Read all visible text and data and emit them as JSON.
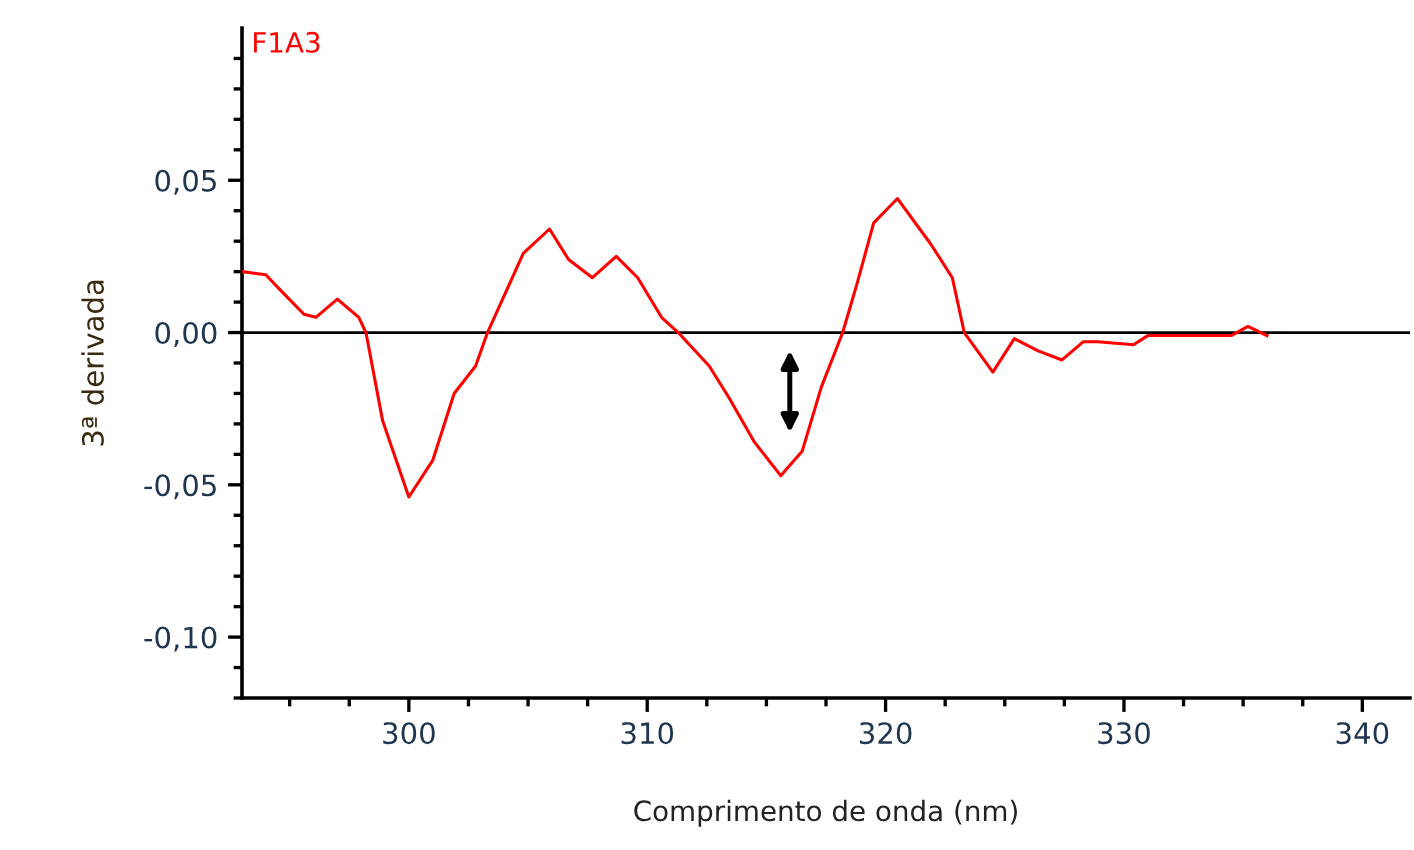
{
  "chart_data": {
    "type": "line",
    "xlabel": "Comprimento de onda (nm)",
    "ylabel": "3ª derivada",
    "series": [
      {
        "name": "F1A3",
        "color": "#ff0000",
        "x": [
          293.0,
          294.0,
          294.6,
          295.6,
          296.1,
          297.0,
          297.9,
          298.2,
          298.9,
          300.0,
          301.0,
          301.9,
          302.8,
          303.3,
          304.8,
          305.9,
          306.7,
          307.7,
          308.7,
          309.6,
          310.6,
          311.3,
          312.6,
          313.4,
          314.5,
          315.6,
          316.5,
          317.3,
          318.2,
          318.8,
          319.5,
          320.5,
          321.9,
          322.8,
          323.3,
          324.5,
          325.4,
          326.4,
          327.4,
          328.3,
          328.9,
          330.4,
          331.0,
          332.0,
          333.0,
          334.5,
          335.2,
          336.0
        ],
        "values": [
          0.02,
          0.019,
          0.014,
          0.006,
          0.005,
          0.011,
          0.005,
          0.0,
          -0.029,
          -0.054,
          -0.042,
          -0.02,
          -0.011,
          0.0,
          0.026,
          0.034,
          0.024,
          0.018,
          0.025,
          0.018,
          0.005,
          0.0,
          -0.011,
          -0.021,
          -0.036,
          -0.047,
          -0.039,
          -0.018,
          0.0,
          0.016,
          0.036,
          0.044,
          0.029,
          0.018,
          0.0,
          -0.013,
          -0.002,
          -0.006,
          -0.009,
          -0.003,
          -0.003,
          -0.004,
          -0.001,
          -0.001,
          -0.001,
          -0.001,
          0.002,
          -0.001
        ]
      }
    ],
    "xlim": [
      293,
      342
    ],
    "xticks": [
      {
        "value": 295,
        "label": null
      },
      {
        "value": 297.5,
        "label": null
      },
      300,
      {
        "value": 302.5,
        "label": null
      },
      {
        "value": 305,
        "label": null
      },
      {
        "value": 307.5,
        "label": null
      },
      310,
      {
        "value": 312.5,
        "label": null
      },
      {
        "value": 315,
        "label": null
      },
      {
        "value": 317.5,
        "label": null
      },
      320,
      {
        "value": 322.5,
        "label": null
      },
      {
        "value": 325,
        "label": null
      },
      {
        "value": 327.5,
        "label": null
      },
      330,
      {
        "value": 332.5,
        "label": null
      },
      {
        "value": 335,
        "label": null
      },
      {
        "value": 337.5,
        "label": null
      },
      340
    ],
    "ylim": [
      -0.12,
      0.1
    ],
    "yticks": [
      {
        "value": -0.12,
        "label": null
      },
      {
        "value": -0.11,
        "label": null
      },
      {
        "value": -0.1,
        "label": "-0,10"
      },
      {
        "value": -0.09,
        "label": null
      },
      {
        "value": -0.08,
        "label": null
      },
      {
        "value": -0.07,
        "label": null
      },
      {
        "value": -0.06,
        "label": null
      },
      {
        "value": -0.05,
        "label": "-0,05"
      },
      {
        "value": -0.04,
        "label": null
      },
      {
        "value": -0.03,
        "label": null
      },
      {
        "value": -0.02,
        "label": null
      },
      {
        "value": -0.01,
        "label": null
      },
      {
        "value": 0,
        "label": "0,00"
      },
      {
        "value": 0.01,
        "label": null
      },
      {
        "value": 0.02,
        "label": null
      },
      {
        "value": 0.03,
        "label": null
      },
      {
        "value": 0.04,
        "label": null
      },
      {
        "value": 0.05,
        "label": "0,05"
      },
      {
        "value": 0.06,
        "label": null
      },
      {
        "value": 0.07,
        "label": null
      },
      {
        "value": 0.08,
        "label": null
      },
      {
        "value": 0.09,
        "label": null
      }
    ],
    "ref_lines": [
      {
        "axis": "y",
        "value": 0,
        "color": "#000000"
      }
    ],
    "grid": false,
    "legend": false,
    "marker": "none",
    "line_style": "solid"
  }
}
